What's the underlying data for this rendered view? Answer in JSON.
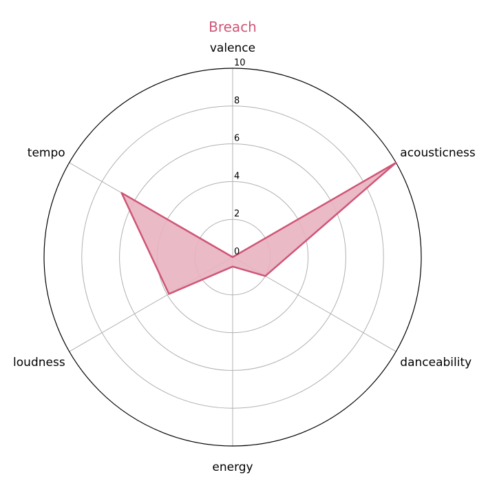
{
  "chart_data": {
    "type": "radar",
    "title": "Breach",
    "axes": [
      "valence",
      "acousticness",
      "danceability",
      "energy",
      "loudness",
      "tempo"
    ],
    "series": [
      {
        "values": [
          0.0,
          10.0,
          2.0,
          0.5,
          3.9,
          6.8
        ]
      }
    ],
    "rlim": [
      0,
      10
    ],
    "rticks": [
      "0",
      "2",
      "4",
      "6",
      "8",
      "10"
    ],
    "grid": true,
    "colors": {
      "accent": "#cf5577",
      "fill": "#e8b2c0",
      "grid": "#b0b0b0",
      "frame": "#000000"
    }
  }
}
